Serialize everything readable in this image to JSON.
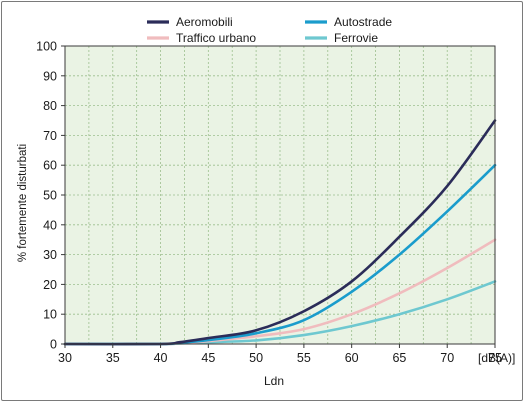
{
  "chart_data": {
    "type": "line",
    "title": "",
    "xlabel": "Ldn",
    "x_unit_label": "[dB(A)]",
    "ylabel": "% fortemente disturbati",
    "xlim": [
      30,
      75
    ],
    "ylim": [
      0,
      100
    ],
    "x_ticks": [
      30,
      35,
      40,
      45,
      50,
      55,
      60,
      65,
      70,
      75
    ],
    "y_ticks": [
      0,
      10,
      20,
      30,
      40,
      50,
      60,
      70,
      80,
      90,
      100
    ],
    "grid": true,
    "legend_position": "top",
    "plot_background": "#eaf3e4",
    "grid_color": "#9cbf8e",
    "series": [
      {
        "name": "Aeromobili",
        "color": "#2b2c59",
        "x": [
          30,
          40,
          42,
          45,
          50,
          55,
          60,
          65,
          70,
          75
        ],
        "y": [
          0,
          0,
          0.6,
          2,
          4.6,
          11,
          21,
          36,
          53,
          75
        ]
      },
      {
        "name": "Autostrade",
        "color": "#1a9ccc",
        "x": [
          30,
          40,
          42,
          45,
          50,
          55,
          60,
          65,
          70,
          75
        ],
        "y": [
          0,
          0,
          0.4,
          1.3,
          3.6,
          8,
          17.5,
          30,
          44.5,
          60
        ]
      },
      {
        "name": "Traffico urbano",
        "color": "#f0bcbe",
        "x": [
          30,
          40,
          42,
          45,
          50,
          55,
          60,
          65,
          70,
          75
        ],
        "y": [
          0,
          0,
          0.3,
          1,
          2.6,
          5,
          10,
          17,
          25.5,
          35
        ]
      },
      {
        "name": "Ferrovie",
        "color": "#6ec8d0",
        "x": [
          30,
          40,
          42,
          45,
          50,
          55,
          60,
          65,
          70,
          75
        ],
        "y": [
          0,
          0,
          0.2,
          0.6,
          1.2,
          3,
          6,
          10,
          15,
          21
        ]
      }
    ]
  }
}
